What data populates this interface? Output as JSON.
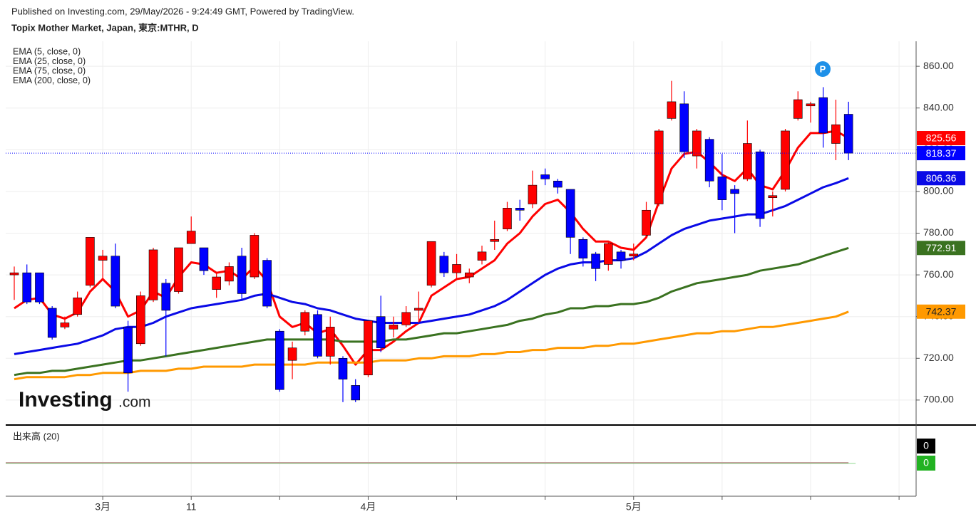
{
  "header": {
    "published": "Published on Investing.com, 29/May/2026 - 9:24:49 GMT, Powered by TradingView.",
    "symbol": "Topix Mother Market, Japan, 東京:MTHR, D"
  },
  "chart_data": {
    "type": "candlestick",
    "categories": [
      null,
      null,
      null,
      null,
      null,
      null,
      null,
      "3月",
      null,
      null,
      null,
      null,
      null,
      null,
      "11",
      null,
      null,
      null,
      null,
      null,
      null,
      null,
      null,
      null,
      null,
      null,
      null,
      null,
      "4月",
      null,
      null,
      null,
      null,
      null,
      null,
      null,
      null,
      null,
      null,
      null,
      null,
      null,
      null,
      null,
      null,
      null,
      null,
      null,
      null,
      "5月",
      null,
      null,
      null,
      null,
      null,
      null,
      null,
      null,
      null,
      null,
      null,
      null,
      null,
      null,
      null,
      null,
      null
    ],
    "open": [
      760,
      761,
      761,
      744,
      735,
      741,
      755,
      767,
      769,
      735,
      727,
      748,
      756,
      752,
      775,
      773,
      753,
      757,
      769,
      759,
      767,
      733,
      719,
      733,
      741,
      721,
      720,
      707,
      712,
      740,
      734,
      736,
      743,
      755,
      769,
      761,
      759,
      767,
      776,
      782,
      792,
      794,
      808,
      805,
      801,
      777,
      770,
      765,
      771,
      769,
      779,
      794,
      835,
      842,
      817,
      825,
      807,
      801,
      806,
      819,
      797,
      801,
      835,
      841,
      845,
      823,
      837
    ],
    "high": [
      764,
      765,
      761,
      745,
      740,
      752,
      778,
      772,
      775,
      738,
      752,
      773,
      758,
      773,
      788,
      773,
      761,
      766,
      773,
      780,
      768,
      734,
      728,
      743,
      743,
      740,
      721,
      710,
      738,
      750,
      740,
      745,
      752,
      776,
      771,
      770,
      763,
      774,
      786,
      795,
      796,
      810,
      811,
      806,
      801,
      778,
      771,
      776,
      772,
      775,
      795,
      830,
      853,
      848,
      830,
      826,
      818,
      803,
      834,
      820,
      800,
      830,
      848,
      843,
      850,
      844,
      843
    ],
    "low": [
      748,
      746,
      746,
      729,
      734,
      740,
      754,
      758,
      744,
      704,
      726,
      747,
      721,
      751,
      775,
      760,
      749,
      755,
      748,
      758,
      744,
      704,
      710,
      731,
      720,
      717,
      699,
      699,
      711,
      723,
      730,
      735,
      737,
      754,
      759,
      758,
      756,
      765,
      772,
      781,
      786,
      792,
      803,
      799,
      770,
      764,
      757,
      762,
      763,
      767,
      778,
      793,
      834,
      816,
      811,
      802,
      791,
      780,
      805,
      783,
      788,
      800,
      834,
      833,
      821,
      815,
      815
    ],
    "close": [
      761,
      747,
      747,
      730,
      737,
      749,
      778,
      769,
      745,
      713,
      750,
      772,
      743,
      773,
      781,
      762,
      759,
      764,
      751,
      779,
      745,
      705,
      725,
      742,
      721,
      735,
      710,
      700,
      738,
      725,
      736,
      742,
      744,
      776,
      761,
      765,
      761,
      771,
      777,
      792,
      791,
      803,
      806,
      802,
      778,
      768,
      763,
      775,
      767,
      770,
      791,
      829,
      843,
      819,
      829,
      805,
      796,
      799,
      823,
      787,
      798,
      829,
      844,
      842,
      828,
      832,
      818.37
    ],
    "up_color": "#ff0000",
    "down_color": "#0000ff",
    "series": [
      {
        "name": "EMA (5, close, 0)",
        "color": "#ff0000",
        "values": [
          744,
          748,
          749,
          741,
          739,
          742,
          752,
          758,
          752,
          740,
          743,
          752,
          749,
          759,
          766,
          765,
          761,
          762,
          758,
          764,
          757,
          740,
          735,
          737,
          732,
          734,
          726,
          717,
          724,
          724,
          728,
          733,
          737,
          750,
          754,
          758,
          759,
          763,
          767,
          775,
          780,
          788,
          794,
          796,
          790,
          782,
          776,
          776,
          773,
          772,
          778,
          795,
          811,
          818,
          819,
          814,
          808,
          805,
          811,
          803,
          801,
          810,
          821,
          828,
          828,
          829,
          825.56
        ]
      },
      {
        "name": "EMA (25, close, 0)",
        "color": "#0a0ae6",
        "values": [
          722,
          723,
          724,
          725,
          726,
          727,
          729,
          731,
          734,
          735,
          735,
          737,
          740,
          742,
          744,
          745,
          746,
          747,
          748,
          750,
          751,
          749,
          747,
          746,
          744,
          743,
          741,
          739,
          738,
          737,
          737,
          737,
          737,
          738,
          739,
          740,
          741,
          743,
          745,
          748,
          752,
          756,
          760,
          763,
          765,
          766,
          766,
          767,
          767,
          768,
          771,
          775,
          779,
          782,
          784,
          786,
          787,
          788,
          789,
          789,
          791,
          793,
          796,
          799,
          802,
          804,
          806.36
        ]
      },
      {
        "name": "EMA (75, close, 0)",
        "color": "#3a7220",
        "values": [
          712,
          713,
          713,
          714,
          714,
          715,
          716,
          717,
          718,
          719,
          719,
          720,
          721,
          722,
          723,
          724,
          725,
          726,
          727,
          728,
          729,
          729,
          729,
          729,
          729,
          729,
          728,
          728,
          728,
          728,
          729,
          729,
          730,
          731,
          732,
          732,
          733,
          734,
          735,
          736,
          738,
          739,
          741,
          742,
          744,
          744,
          745,
          745,
          746,
          746,
          747,
          749,
          752,
          754,
          756,
          757,
          758,
          759,
          760,
          762,
          763,
          764,
          765,
          767,
          769,
          771,
          772.91
        ]
      },
      {
        "name": "EMA (200, close, 0)",
        "color": "#ff9900",
        "values": [
          710,
          711,
          711,
          711,
          711,
          712,
          712,
          713,
          713,
          713,
          714,
          714,
          714,
          715,
          715,
          716,
          716,
          716,
          716,
          717,
          717,
          717,
          717,
          717,
          718,
          718,
          718,
          718,
          718,
          719,
          719,
          719,
          720,
          720,
          721,
          721,
          721,
          722,
          722,
          723,
          723,
          724,
          724,
          725,
          725,
          725,
          726,
          726,
          727,
          727,
          728,
          729,
          730,
          731,
          732,
          732,
          733,
          733,
          734,
          735,
          735,
          736,
          737,
          738,
          739,
          740,
          742.37
        ]
      }
    ],
    "ylim": [
      688.7,
      871.3
    ],
    "yticks": [
      {
        "value": 700,
        "label": "700.00"
      },
      {
        "value": 720,
        "label": "720.00"
      },
      {
        "value": 740,
        "label": "740.00"
      },
      {
        "value": 760,
        "label": "760.00"
      },
      {
        "value": 780,
        "label": "780.00"
      },
      {
        "value": 800,
        "label": "800.00"
      },
      {
        "value": 820,
        "label": "820.00"
      },
      {
        "value": 840,
        "label": "840.00"
      },
      {
        "value": 860,
        "label": "860.00"
      }
    ],
    "grid": true,
    "marker": "P",
    "watermark": {
      "brand": "Investing",
      "suffix": ".com"
    },
    "volume": {
      "title": "出来高 (20)",
      "value": 0,
      "value_color": "#000000",
      "ma": 0,
      "ma_color": "#22b222"
    }
  }
}
